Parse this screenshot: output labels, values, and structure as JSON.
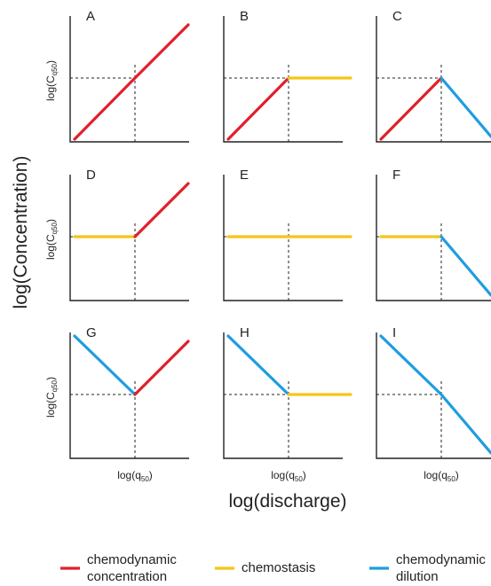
{
  "figure": {
    "y_axis_label": "log(Concentration)",
    "x_axis_label": "log(discharge)",
    "panel_y_label_base": "log(C",
    "panel_y_label_sub": "q50",
    "panel_y_label_close": ")",
    "panel_x_label_base": "log(q",
    "panel_x_label_sub": "50",
    "panel_x_label_close": ")",
    "colors": {
      "chemodynamic_concentration": "#e0202a",
      "chemostasis": "#f5c518",
      "chemodynamic_dilution": "#1e9de0",
      "axis": "#222222"
    },
    "panels": [
      {
        "letter": "A",
        "left": "concentration",
        "right": "concentration"
      },
      {
        "letter": "B",
        "left": "concentration",
        "right": "chemostasis"
      },
      {
        "letter": "C",
        "left": "concentration",
        "right": "dilution"
      },
      {
        "letter": "D",
        "left": "chemostasis",
        "right": "concentration"
      },
      {
        "letter": "E",
        "left": "chemostasis",
        "right": "chemostasis"
      },
      {
        "letter": "F",
        "left": "chemostasis",
        "right": "dilution"
      },
      {
        "letter": "G",
        "left": "dilution",
        "right": "concentration"
      },
      {
        "letter": "H",
        "left": "dilution",
        "right": "chemostasis"
      },
      {
        "letter": "I",
        "left": "dilution",
        "right": "dilution"
      }
    ],
    "legend": [
      {
        "key": "concentration",
        "line1": "chemodynamic",
        "line2": "concentration"
      },
      {
        "key": "chemostasis",
        "line1": "chemostasis",
        "line2": ""
      },
      {
        "key": "dilution",
        "line1": "chemodynamic",
        "line2": "dilution"
      }
    ]
  }
}
